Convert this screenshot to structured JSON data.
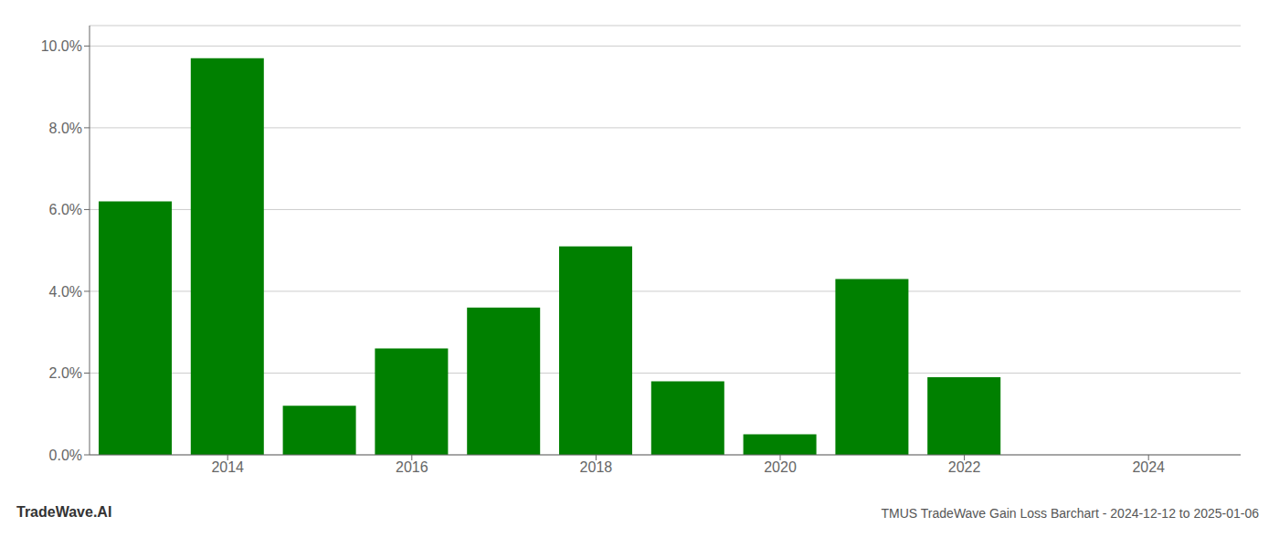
{
  "chart_data": {
    "type": "bar",
    "title": "TMUS TradeWave Gain Loss Barchart - 2024-12-12 to 2025-01-06",
    "annotations": [
      "TradeWave.AI"
    ],
    "x": [
      2013,
      2014,
      2015,
      2016,
      2017,
      2018,
      2019,
      2020,
      2021,
      2022,
      2023
    ],
    "values": [
      0.062,
      0.097,
      0.012,
      0.026,
      0.036,
      0.051,
      0.018,
      0.005,
      0.043,
      0.019,
      0.0
    ],
    "color": "#008000",
    "xlim": [
      2012.5,
      2025.0
    ],
    "xticks": [
      2014,
      2016,
      2018,
      2020,
      2022,
      2024
    ],
    "ylim": [
      0,
      0.105
    ],
    "yticks": [
      {
        "value": 0.0,
        "label": "0.0%"
      },
      {
        "value": 0.02,
        "label": "2.0%"
      },
      {
        "value": 0.04,
        "label": "4.0%"
      },
      {
        "value": 0.06,
        "label": "6.0%"
      },
      {
        "value": 0.08,
        "label": "8.0%"
      },
      {
        "value": 0.1,
        "label": "10.0%"
      }
    ],
    "grid": true
  }
}
